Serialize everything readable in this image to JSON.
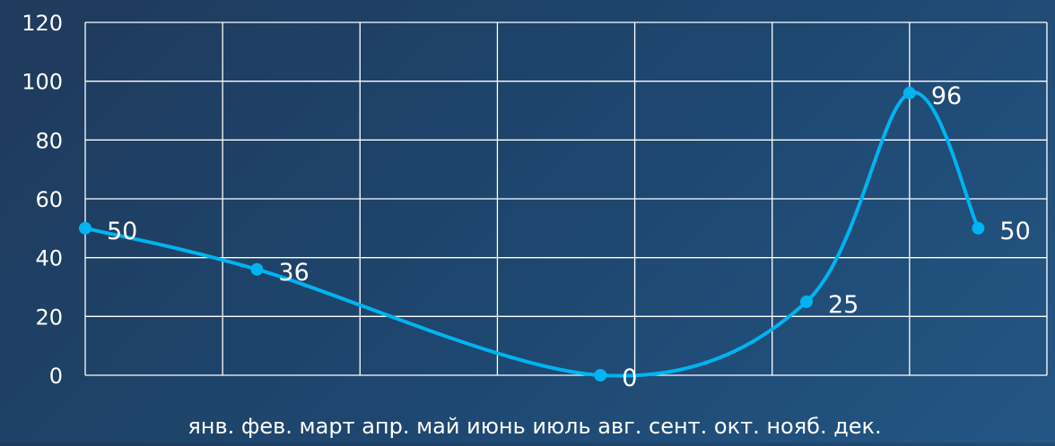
{
  "chart_data": {
    "type": "line",
    "categories": [
      "янв.",
      "фев.",
      "март",
      "апр.",
      "май",
      "июнь",
      "июль",
      "авг.",
      "сент.",
      "окт.",
      "нояб.",
      "дек."
    ],
    "category_axis_text": "янв. фев. март апр. май июнь июль авг. сент. окт. нояб. дек.",
    "series": [
      {
        "name": "",
        "color": "#00b4f0",
        "points": [
          {
            "x": 0.0,
            "y": 50,
            "label": "50"
          },
          {
            "x": 1.25,
            "y": 36,
            "label": "36"
          },
          {
            "x": 3.75,
            "y": 0,
            "label": "0"
          },
          {
            "x": 5.25,
            "y": 25,
            "label": "25"
          },
          {
            "x": 6.0,
            "y": 96,
            "label": "96"
          },
          {
            "x": 6.5,
            "y": 50,
            "label": "50"
          }
        ]
      }
    ],
    "x_range": [
      0,
      7
    ],
    "ylim": [
      0,
      120
    ],
    "yticks": [
      "0",
      "20",
      "40",
      "60",
      "80",
      "100",
      "120"
    ],
    "grid": true,
    "legend": "none",
    "colors": {
      "line": "#00b4f0",
      "grid": "#ffffff",
      "text": "#ffffff"
    }
  }
}
